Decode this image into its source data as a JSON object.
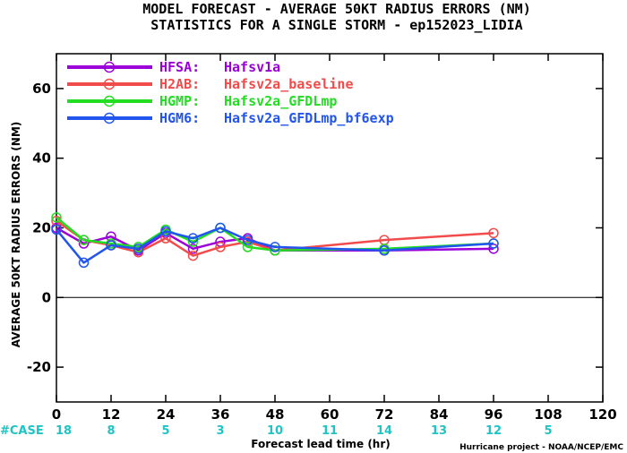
{
  "chart_data": {
    "type": "line",
    "title": "MODEL FORECAST - AVERAGE 50KT RADIUS ERRORS (NM)",
    "subtitle": "STATISTICS FOR A SINGLE STORM - ep152023_LIDIA",
    "xlabel": "Forecast lead time (hr)",
    "ylabel": "AVERAGE 50KT RADIUS ERRORS (NM)",
    "xlim": [
      0,
      120
    ],
    "ylim": [
      -30,
      70
    ],
    "xticks": [
      0,
      12,
      24,
      36,
      48,
      60,
      72,
      84,
      96,
      108,
      120
    ],
    "yticks": [
      -20,
      0,
      20,
      40,
      60
    ],
    "zero_line": true,
    "legend_position": "top-left",
    "series": [
      {
        "name": "HFSA:",
        "label": "Hafsv1a",
        "color": "#9b00d9",
        "x": [
          0,
          6,
          12,
          18,
          24,
          30,
          36,
          42,
          48,
          72,
          96
        ],
        "y": [
          20,
          15.5,
          17.5,
          13.5,
          18.5,
          14,
          16,
          17,
          13.5,
          13.5,
          14
        ]
      },
      {
        "name": "H2AB:",
        "label": "Hafsv2a_baseline",
        "color": "#f24b4b",
        "x": [
          0,
          6,
          12,
          18,
          24,
          30,
          36,
          42,
          48,
          72,
          96
        ],
        "y": [
          22,
          16.5,
          15,
          13,
          17,
          12,
          14.5,
          16,
          13.5,
          16.5,
          18.5
        ]
      },
      {
        "name": "HGMP:",
        "label": "Hafsv2a_GFDLmp",
        "color": "#22dd22",
        "x": [
          0,
          6,
          12,
          18,
          24,
          30,
          36,
          42,
          48,
          72,
          96
        ],
        "y": [
          23,
          16.5,
          15.5,
          14.5,
          19.5,
          16,
          20,
          14.5,
          13.5,
          14,
          15.5
        ]
      },
      {
        "name": "HGM6:",
        "label": "Hafsv2a_GFDLmp_bf6exp",
        "color": "#2255ee",
        "x": [
          0,
          6,
          12,
          18,
          24,
          30,
          36,
          42,
          48,
          72,
          96
        ],
        "y": [
          19.5,
          10,
          15,
          14,
          19,
          17,
          20,
          16.5,
          14.5,
          13.5,
          15.5
        ]
      }
    ],
    "cases": {
      "label": "#CASE",
      "label_color": "#1fc4c4",
      "entries": [
        {
          "x": 0,
          "n": "18"
        },
        {
          "x": 12,
          "n": "8"
        },
        {
          "x": 24,
          "n": "5"
        },
        {
          "x": 36,
          "n": "3"
        },
        {
          "x": 48,
          "n": "10"
        },
        {
          "x": 60,
          "n": "11"
        },
        {
          "x": 72,
          "n": "14"
        },
        {
          "x": 84,
          "n": "13"
        },
        {
          "x": 96,
          "n": "12"
        },
        {
          "x": 108,
          "n": "5"
        }
      ]
    },
    "credit": "Hurricane project - NOAA/NCEP/EMC"
  }
}
